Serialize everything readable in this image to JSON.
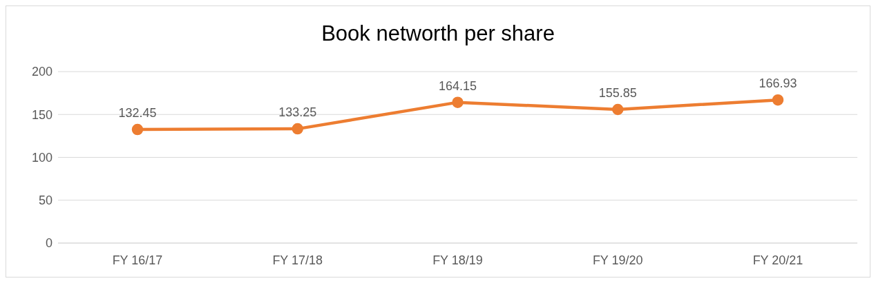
{
  "chart_data": {
    "type": "line",
    "title": "Book networth per share",
    "categories": [
      "FY 16/17",
      "FY 17/18",
      "FY 18/19",
      "FY 19/20",
      "FY 20/21"
    ],
    "series": [
      {
        "color": "#ed7d31",
        "values": [
          132.45,
          133.25,
          164.15,
          155.85,
          166.93
        ]
      }
    ],
    "ylim": [
      0,
      200
    ],
    "yticks": [
      0,
      50,
      100,
      150,
      200
    ],
    "grid": "y",
    "data_labels": true,
    "marker": "circle",
    "line_style": "solid"
  }
}
